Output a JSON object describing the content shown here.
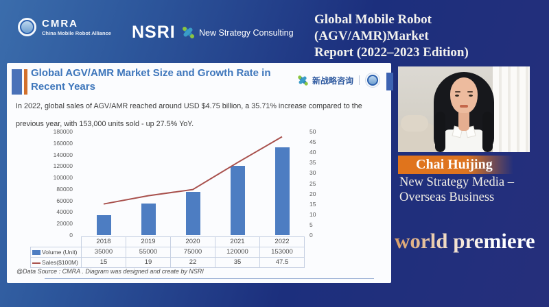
{
  "header": {
    "cmra": {
      "abbr": "CMRA",
      "full": "China Mobile Robot Alliance"
    },
    "nsri": "NSRI",
    "nsc": "New Strategy Consulting",
    "report_title": [
      "Global Mobile Robot (AGV/AMR)Market",
      "Report (2022–2023 Edition)"
    ]
  },
  "slide": {
    "title": "Global AGV/AMR Market Size and Growth Rate in Recent Years",
    "brand_cn": "新战略咨询",
    "body_lines": [
      "In 2022, global sales of AGV/AMR reached around USD $4.75 billion, a 35.71% increase compared to the",
      "previous year, with 153,000 units sold - up 27.5% YoY."
    ],
    "source": "@Data Source : CMRA . Diagram was designed and create by NSRI"
  },
  "chart_data": {
    "type": "bar",
    "title": "Global AGV/AMR Market Size and Growth Rate in Recent Years",
    "categories": [
      "2018",
      "2019",
      "2020",
      "2021",
      "2022"
    ],
    "series": [
      {
        "name": "Volume (Unit)",
        "type": "bar",
        "axis": "left",
        "color": "#4d7dc2",
        "values": [
          35000,
          55000,
          75000,
          120000,
          153000
        ]
      },
      {
        "name": "Sales($100M)",
        "type": "line",
        "axis": "right",
        "color": "#a8504c",
        "values": [
          15,
          19,
          22,
          35,
          47.5
        ]
      }
    ],
    "left_axis": {
      "min": 0,
      "max": 180000,
      "step": 20000,
      "ticks": [
        0,
        20000,
        40000,
        60000,
        80000,
        100000,
        120000,
        140000,
        160000,
        180000
      ]
    },
    "right_axis": {
      "min": 0,
      "max": 50,
      "step": 5,
      "ticks": [
        0,
        5,
        10,
        15,
        20,
        25,
        30,
        35,
        40,
        45,
        50
      ]
    },
    "grid": false,
    "legend_position": "table-left"
  },
  "speaker": {
    "name": "Chai Huijing",
    "role_lines": [
      "New Strategy Media –",
      "Overseas Business"
    ]
  },
  "premiere_label": "world premiere",
  "colors": {
    "bar_blue": "#4d7dc2",
    "line_red": "#a8504c",
    "slide_title_blue": "#3e76bb",
    "accent_orange": "#d2702c",
    "banner_orange": "#dd7420",
    "navy_background": "#262f7b"
  }
}
